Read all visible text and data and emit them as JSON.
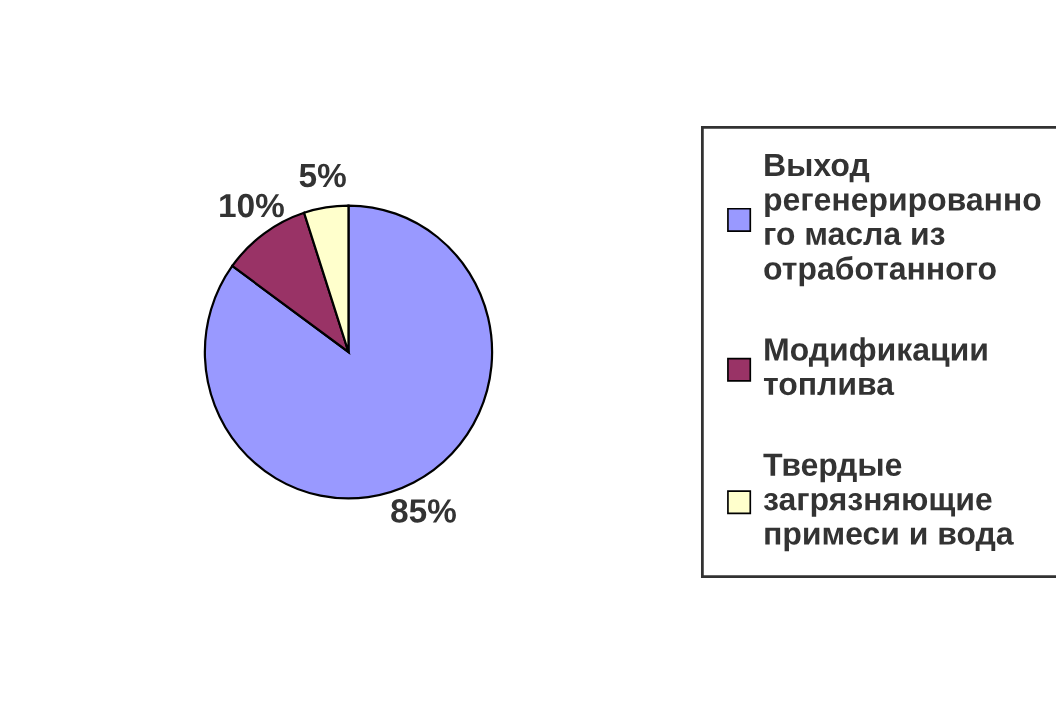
{
  "chart_data": {
    "type": "pie",
    "categories": [
      "Выход регенерированного масла из отработанного",
      "Модификации топлива",
      "Твердые загрязняющие примеси и вода"
    ],
    "values": [
      85,
      10,
      5
    ],
    "colors": [
      "#9999ff",
      "#993366",
      "#ffffcc"
    ],
    "value_labels": [
      "85%",
      "10%",
      "5%"
    ],
    "legend": "right"
  }
}
